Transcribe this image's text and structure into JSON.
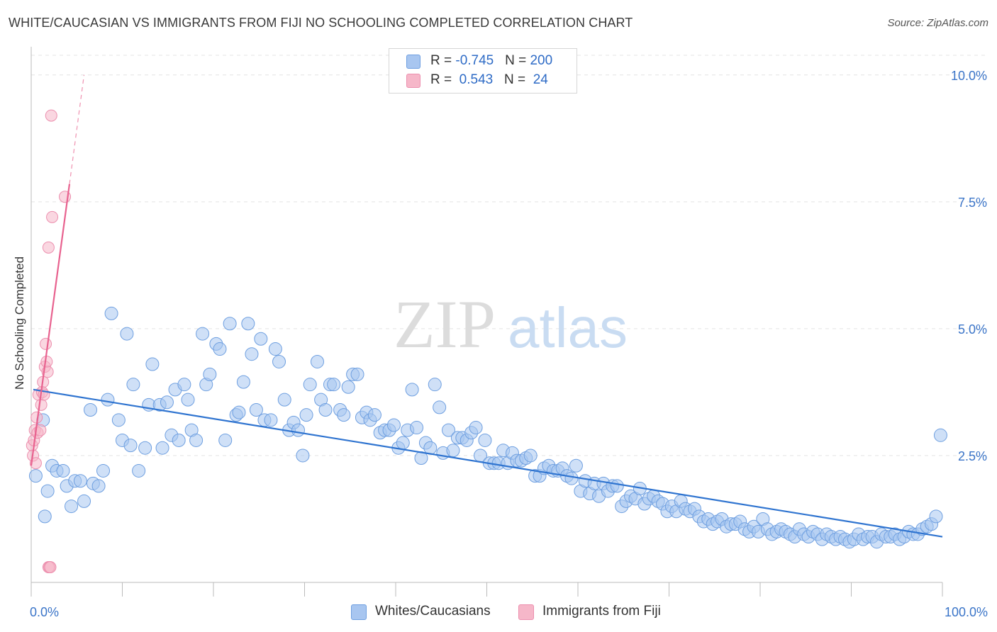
{
  "title": "WHITE/CAUCASIAN VS IMMIGRANTS FROM FIJI NO SCHOOLING COMPLETED CORRELATION CHART",
  "source": "Source: ZipAtlas.com",
  "watermark": {
    "zip": "ZIP",
    "atlas": "atlas"
  },
  "legend": {
    "rows": [
      {
        "r_label": "R = ",
        "r_value": "-0.745",
        "n_label": "N = ",
        "n_value": "200",
        "color": "#a8c6f0"
      },
      {
        "r_label": "R = ",
        "r_value": " 0.543",
        "n_label": "N = ",
        "n_value": " 24",
        "color": "#f6b7c9"
      }
    ]
  },
  "bottom_legend": [
    {
      "label": "Whites/Caucasians",
      "color": "#a8c6f0"
    },
    {
      "label": "Immigrants from Fiji",
      "color": "#f6b7c9"
    }
  ],
  "colors": {
    "blue_fill": "#a8c6f0",
    "blue_stroke": "#6e9fe0",
    "blue_line": "#2f74d0",
    "pink_fill": "#f6b7c9",
    "pink_stroke": "#ec8fae",
    "pink_line": "#e8628f"
  },
  "chart_data": {
    "type": "scatter",
    "title": "WHITE/CAUCASIAN VS IMMIGRANTS FROM FIJI NO SCHOOLING COMPLETED CORRELATION CHART",
    "xlabel": "",
    "ylabel": "No Schooling Completed",
    "xlim": [
      0,
      100
    ],
    "ylim": [
      0,
      10.5
    ],
    "x_tick_labels": [
      "0.0%",
      "100.0%"
    ],
    "y_ticks": [
      2.5,
      5.0,
      7.5,
      10.0
    ],
    "y_tick_labels": [
      "2.5%",
      "5.0%",
      "7.5%",
      "10.0%"
    ],
    "grid": "horizontal dashed",
    "series": [
      {
        "name": "Whites/Caucasians",
        "trend": {
          "x": [
            0,
            100
          ],
          "y": [
            3.8,
            0.9
          ]
        },
        "points": [
          [
            0.5,
            2.1
          ],
          [
            1.3,
            3.2
          ],
          [
            1.5,
            1.3
          ],
          [
            1.8,
            1.8
          ],
          [
            2.3,
            2.3
          ],
          [
            2.8,
            2.2
          ],
          [
            3.5,
            2.2
          ],
          [
            3.9,
            1.9
          ],
          [
            4.4,
            1.5
          ],
          [
            4.8,
            2.0
          ],
          [
            5.4,
            2.0
          ],
          [
            5.8,
            1.6
          ],
          [
            6.5,
            3.4
          ],
          [
            6.8,
            1.95
          ],
          [
            7.4,
            1.9
          ],
          [
            7.9,
            2.2
          ],
          [
            8.4,
            3.6
          ],
          [
            9.6,
            3.2
          ],
          [
            8.8,
            5.3
          ],
          [
            10.0,
            2.8
          ],
          [
            10.5,
            4.9
          ],
          [
            10.9,
            2.7
          ],
          [
            11.2,
            3.9
          ],
          [
            11.8,
            2.2
          ],
          [
            12.5,
            2.65
          ],
          [
            12.9,
            3.5
          ],
          [
            13.3,
            4.3
          ],
          [
            14.1,
            3.5
          ],
          [
            14.4,
            2.65
          ],
          [
            14.9,
            3.55
          ],
          [
            15.4,
            2.9
          ],
          [
            15.8,
            3.8
          ],
          [
            16.2,
            2.8
          ],
          [
            16.8,
            3.9
          ],
          [
            17.2,
            3.6
          ],
          [
            17.6,
            3.0
          ],
          [
            18.1,
            2.8
          ],
          [
            18.8,
            4.9
          ],
          [
            19.2,
            3.9
          ],
          [
            19.6,
            4.1
          ],
          [
            20.3,
            4.7
          ],
          [
            20.7,
            4.6
          ],
          [
            21.3,
            2.8
          ],
          [
            21.8,
            5.1
          ],
          [
            22.5,
            3.3
          ],
          [
            22.8,
            3.35
          ],
          [
            23.3,
            3.95
          ],
          [
            23.8,
            5.1
          ],
          [
            24.2,
            4.5
          ],
          [
            24.7,
            3.4
          ],
          [
            25.2,
            4.8
          ],
          [
            25.6,
            3.2
          ],
          [
            26.3,
            3.2
          ],
          [
            26.8,
            4.6
          ],
          [
            27.2,
            4.35
          ],
          [
            27.8,
            3.6
          ],
          [
            28.3,
            3.0
          ],
          [
            28.8,
            3.15
          ],
          [
            29.3,
            3.0
          ],
          [
            29.8,
            2.5
          ],
          [
            30.2,
            3.3
          ],
          [
            30.6,
            3.9
          ],
          [
            31.4,
            4.35
          ],
          [
            31.8,
            3.6
          ],
          [
            32.3,
            3.4
          ],
          [
            32.8,
            3.9
          ],
          [
            33.2,
            3.9
          ],
          [
            33.9,
            3.4
          ],
          [
            34.3,
            3.3
          ],
          [
            34.8,
            3.85
          ],
          [
            35.3,
            4.1
          ],
          [
            35.8,
            4.1
          ],
          [
            36.3,
            3.25
          ],
          [
            36.8,
            3.35
          ],
          [
            37.2,
            3.2
          ],
          [
            37.7,
            3.3
          ],
          [
            38.3,
            2.95
          ],
          [
            38.8,
            3.0
          ],
          [
            39.3,
            3.0
          ],
          [
            39.8,
            3.1
          ],
          [
            40.3,
            2.65
          ],
          [
            40.8,
            2.75
          ],
          [
            41.3,
            3.0
          ],
          [
            41.8,
            3.8
          ],
          [
            42.3,
            3.05
          ],
          [
            42.8,
            2.45
          ],
          [
            43.3,
            2.75
          ],
          [
            43.8,
            2.65
          ],
          [
            44.3,
            3.9
          ],
          [
            44.8,
            3.45
          ],
          [
            45.2,
            2.55
          ],
          [
            45.8,
            3.0
          ],
          [
            46.3,
            2.6
          ],
          [
            46.8,
            2.85
          ],
          [
            47.3,
            2.85
          ],
          [
            47.8,
            2.8
          ],
          [
            48.3,
            2.95
          ],
          [
            48.8,
            3.05
          ],
          [
            49.3,
            2.5
          ],
          [
            49.8,
            2.8
          ],
          [
            50.3,
            2.35
          ],
          [
            50.8,
            2.35
          ],
          [
            51.3,
            2.35
          ],
          [
            51.8,
            2.6
          ],
          [
            52.3,
            2.35
          ],
          [
            52.8,
            2.55
          ],
          [
            53.3,
            2.4
          ],
          [
            53.8,
            2.4
          ],
          [
            54.3,
            2.45
          ],
          [
            54.8,
            2.5
          ],
          [
            55.3,
            2.1
          ],
          [
            55.8,
            2.1
          ],
          [
            56.3,
            2.25
          ],
          [
            56.8,
            2.3
          ],
          [
            57.3,
            2.2
          ],
          [
            57.8,
            2.2
          ],
          [
            58.3,
            2.25
          ],
          [
            58.8,
            2.1
          ],
          [
            59.3,
            2.05
          ],
          [
            59.8,
            2.3
          ],
          [
            60.3,
            1.8
          ],
          [
            60.8,
            2.0
          ],
          [
            61.3,
            1.75
          ],
          [
            61.8,
            1.95
          ],
          [
            62.3,
            1.7
          ],
          [
            62.8,
            1.95
          ],
          [
            63.3,
            1.8
          ],
          [
            63.8,
            1.9
          ],
          [
            64.3,
            1.9
          ],
          [
            64.8,
            1.5
          ],
          [
            65.3,
            1.6
          ],
          [
            65.8,
            1.7
          ],
          [
            66.3,
            1.65
          ],
          [
            66.8,
            1.85
          ],
          [
            67.3,
            1.55
          ],
          [
            67.8,
            1.65
          ],
          [
            68.3,
            1.7
          ],
          [
            68.8,
            1.6
          ],
          [
            69.3,
            1.55
          ],
          [
            69.8,
            1.4
          ],
          [
            70.3,
            1.5
          ],
          [
            70.8,
            1.4
          ],
          [
            71.3,
            1.6
          ],
          [
            71.8,
            1.45
          ],
          [
            72.3,
            1.4
          ],
          [
            72.8,
            1.45
          ],
          [
            73.3,
            1.3
          ],
          [
            73.8,
            1.2
          ],
          [
            74.3,
            1.25
          ],
          [
            74.8,
            1.15
          ],
          [
            75.3,
            1.2
          ],
          [
            75.8,
            1.25
          ],
          [
            76.3,
            1.1
          ],
          [
            76.8,
            1.15
          ],
          [
            77.3,
            1.15
          ],
          [
            77.8,
            1.2
          ],
          [
            78.3,
            1.05
          ],
          [
            78.8,
            1.0
          ],
          [
            79.3,
            1.1
          ],
          [
            79.8,
            1.0
          ],
          [
            80.3,
            1.25
          ],
          [
            80.8,
            1.05
          ],
          [
            81.3,
            0.95
          ],
          [
            81.8,
            1.0
          ],
          [
            82.3,
            1.05
          ],
          [
            82.8,
            1.0
          ],
          [
            83.3,
            0.95
          ],
          [
            83.8,
            0.9
          ],
          [
            84.3,
            1.05
          ],
          [
            84.8,
            0.95
          ],
          [
            85.3,
            0.9
          ],
          [
            85.8,
            1.0
          ],
          [
            86.3,
            0.95
          ],
          [
            86.8,
            0.85
          ],
          [
            87.3,
            0.95
          ],
          [
            87.8,
            0.9
          ],
          [
            88.3,
            0.85
          ],
          [
            88.8,
            0.9
          ],
          [
            89.3,
            0.85
          ],
          [
            89.8,
            0.8
          ],
          [
            90.3,
            0.85
          ],
          [
            90.8,
            0.95
          ],
          [
            91.3,
            0.85
          ],
          [
            91.8,
            0.9
          ],
          [
            92.3,
            0.9
          ],
          [
            92.8,
            0.8
          ],
          [
            93.3,
            0.95
          ],
          [
            93.8,
            0.9
          ],
          [
            94.3,
            0.9
          ],
          [
            94.8,
            0.95
          ],
          [
            95.3,
            0.85
          ],
          [
            95.8,
            0.9
          ],
          [
            96.3,
            1.0
          ],
          [
            96.8,
            0.95
          ],
          [
            97.3,
            0.95
          ],
          [
            97.8,
            1.05
          ],
          [
            98.3,
            1.1
          ],
          [
            98.8,
            1.15
          ],
          [
            99.3,
            1.3
          ],
          [
            99.8,
            2.9
          ]
        ]
      },
      {
        "name": "Immigrants from Fiji",
        "trend": {
          "x": [
            0,
            4.2
          ],
          "y": [
            2.3,
            7.85
          ],
          "dashed_extension_to": [
            5.8,
            10.0
          ]
        },
        "points": [
          [
            0.1,
            2.7
          ],
          [
            0.2,
            2.5
          ],
          [
            0.3,
            2.8
          ],
          [
            0.4,
            3.0
          ],
          [
            0.5,
            2.35
          ],
          [
            0.6,
            3.25
          ],
          [
            0.7,
            2.95
          ],
          [
            0.8,
            3.7
          ],
          [
            1.0,
            3.0
          ],
          [
            1.1,
            3.5
          ],
          [
            1.2,
            3.75
          ],
          [
            1.3,
            3.95
          ],
          [
            1.4,
            3.7
          ],
          [
            1.5,
            4.25
          ],
          [
            1.6,
            4.7
          ],
          [
            1.7,
            4.35
          ],
          [
            1.8,
            4.15
          ],
          [
            1.9,
            0.3
          ],
          [
            2.0,
            0.3
          ],
          [
            2.1,
            0.3
          ],
          [
            1.9,
            6.6
          ],
          [
            2.2,
            9.2
          ],
          [
            2.3,
            7.2
          ],
          [
            3.7,
            7.6
          ]
        ]
      }
    ]
  }
}
